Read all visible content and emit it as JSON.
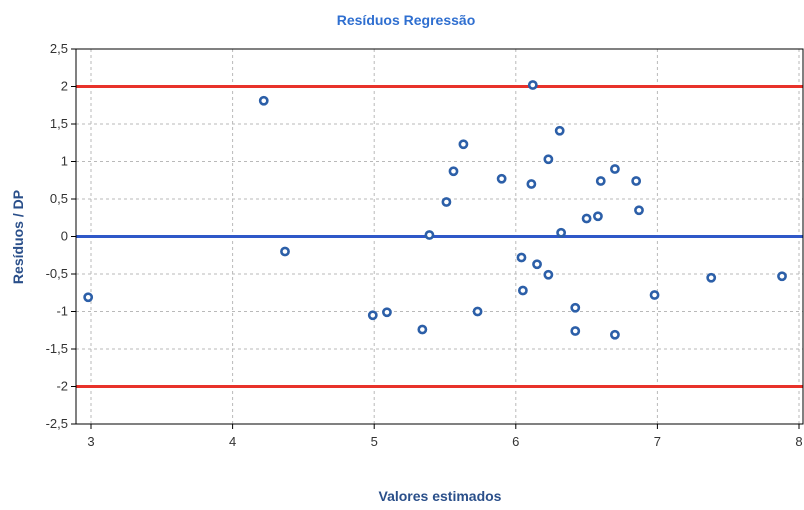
{
  "chart_data": {
    "type": "scatter",
    "title": "Resíduos Regressão",
    "xlabel": "Valores estimados",
    "ylabel": "Resíduos / DP",
    "xlim": [
      3,
      8
    ],
    "ylim": [
      -2.5,
      2.5
    ],
    "x_ticks": [
      "3",
      "4",
      "5",
      "6",
      "7",
      "8"
    ],
    "y_ticks": [
      "2,5",
      "2",
      "1,5",
      "1",
      "0,5",
      "0",
      "-0,5",
      "-1",
      "-1,5",
      "-2",
      "-2,5"
    ],
    "grid": true,
    "reference_lines": [
      {
        "y": 2,
        "color": "#e8322a"
      },
      {
        "y": 0,
        "color": "#2f58c8"
      },
      {
        "y": -2,
        "color": "#e8322a"
      }
    ],
    "point_color": "#2c5fa8",
    "points": [
      {
        "x": 2.98,
        "y": -0.81
      },
      {
        "x": 4.22,
        "y": 1.81
      },
      {
        "x": 4.37,
        "y": -0.2
      },
      {
        "x": 4.99,
        "y": -1.05
      },
      {
        "x": 5.09,
        "y": -1.01
      },
      {
        "x": 5.34,
        "y": -1.24
      },
      {
        "x": 5.39,
        "y": 0.02
      },
      {
        "x": 5.51,
        "y": 0.46
      },
      {
        "x": 5.56,
        "y": 0.87
      },
      {
        "x": 5.63,
        "y": 1.23
      },
      {
        "x": 5.73,
        "y": -1.0
      },
      {
        "x": 5.9,
        "y": 0.77
      },
      {
        "x": 6.04,
        "y": -0.28
      },
      {
        "x": 6.05,
        "y": -0.72
      },
      {
        "x": 6.11,
        "y": 0.7
      },
      {
        "x": 6.12,
        "y": 2.02
      },
      {
        "x": 6.15,
        "y": -0.37
      },
      {
        "x": 6.23,
        "y": -0.51
      },
      {
        "x": 6.23,
        "y": 1.03
      },
      {
        "x": 6.31,
        "y": 1.41
      },
      {
        "x": 6.32,
        "y": 0.05
      },
      {
        "x": 6.42,
        "y": -0.95
      },
      {
        "x": 6.42,
        "y": -1.26
      },
      {
        "x": 6.5,
        "y": 0.24
      },
      {
        "x": 6.58,
        "y": 0.27
      },
      {
        "x": 6.6,
        "y": 0.74
      },
      {
        "x": 6.7,
        "y": -1.31
      },
      {
        "x": 6.7,
        "y": 0.9
      },
      {
        "x": 6.85,
        "y": 0.74
      },
      {
        "x": 6.87,
        "y": 0.35
      },
      {
        "x": 6.98,
        "y": -0.78
      },
      {
        "x": 7.38,
        "y": -0.55
      },
      {
        "x": 7.88,
        "y": -0.53
      }
    ]
  }
}
